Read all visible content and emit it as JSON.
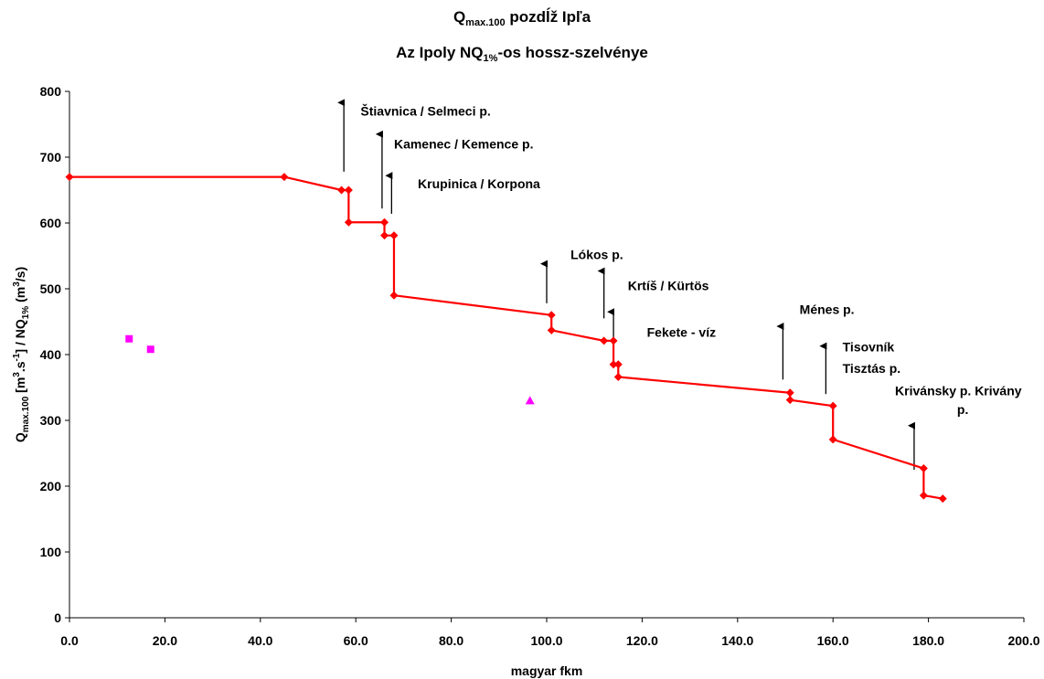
{
  "chart_data": {
    "type": "line",
    "title": "Qmax.100 pozdĺž Ipľa",
    "title_parts": {
      "line1_main": "Q",
      "line1_sub": "max.100",
      "line1_rest": " pozdĺž Ipľa",
      "line2_main": "Az Ipoly NQ",
      "line2_sub": "1%",
      "line2_rest": "-os hossz-szelvénye"
    },
    "xlabel": "magyar fkm",
    "ylabel": "Qmax.100 [m3.s-1] / NQ1% (m3/s)",
    "ylabel_parts": {
      "p1": "Q",
      "p1_sub": "max.100",
      "p2": " [m",
      "p2_sup": "3",
      "p3": ".s",
      "p3_sup": "-1",
      "p4": "] / NQ",
      "p4_sub": "1%",
      "p5": " (m",
      "p5_sup": "3",
      "p6": "/s)"
    },
    "xlim": [
      0,
      200
    ],
    "ylim": [
      0,
      800
    ],
    "x_ticks": [
      0,
      20,
      40,
      60,
      80,
      100,
      120,
      140,
      160,
      180,
      200
    ],
    "x_tick_labels": [
      "0.0",
      "20.0",
      "40.0",
      "60.0",
      "80.0",
      "100.0",
      "120.0",
      "140.0",
      "160.0",
      "180.0",
      "200.0"
    ],
    "y_ticks": [
      0,
      100,
      200,
      300,
      400,
      500,
      600,
      700,
      800
    ],
    "y_tick_labels": [
      "0",
      "100",
      "200",
      "300",
      "400",
      "500",
      "600",
      "700",
      "800"
    ],
    "grid": false,
    "legend": "none",
    "colors": {
      "main_line": "#ff0000",
      "squares": "#ff00ff",
      "triangle": "#ff00ff",
      "arrows": "#000000"
    },
    "series": [
      {
        "kind": "line-with-diamond-markers",
        "points": [
          [
            0,
            670
          ],
          [
            45,
            670
          ],
          [
            57,
            650
          ],
          [
            58.5,
            650
          ],
          [
            58.5,
            601
          ],
          [
            66,
            601
          ],
          [
            66,
            581
          ],
          [
            68,
            581
          ],
          [
            68,
            490
          ],
          [
            101,
            460
          ],
          [
            101,
            437
          ],
          [
            112,
            421
          ],
          [
            114,
            421
          ],
          [
            114,
            385
          ],
          [
            115,
            385
          ],
          [
            115,
            366
          ],
          [
            151,
            342
          ],
          [
            151,
            331
          ],
          [
            160,
            322
          ],
          [
            160,
            271
          ],
          [
            179,
            227
          ],
          [
            179,
            186
          ],
          [
            183,
            181
          ]
        ]
      },
      {
        "kind": "square-markers",
        "points": [
          [
            12.5,
            424
          ],
          [
            17,
            408
          ]
        ]
      },
      {
        "kind": "triangle-marker",
        "points": [
          [
            96.5,
            330
          ]
        ]
      }
    ],
    "annotations": [
      {
        "text": "Štiavnica / Selmeci p.",
        "arrow_x": 57.5,
        "arrow_from": 678,
        "arrow_to": 783,
        "text_x": 61,
        "text_y": 763
      },
      {
        "text": "Kamenec / Kemence p.",
        "arrow_x": 65.5,
        "arrow_from": 622,
        "arrow_to": 735,
        "text_x": 68,
        "text_y": 713
      },
      {
        "text": "Krupinica / Korpona",
        "arrow_x": 67.5,
        "arrow_from": 614,
        "arrow_to": 672,
        "text_x": 73,
        "text_y": 653
      },
      {
        "text": "Lókos p.",
        "arrow_x": 100,
        "arrow_from": 478,
        "arrow_to": 538,
        "text_x": 105,
        "text_y": 545
      },
      {
        "text": "Krtíš / Kürtös",
        "arrow_x": 112,
        "arrow_from": 455,
        "arrow_to": 527,
        "text_x": 117,
        "text_y": 498
      },
      {
        "text": "",
        "arrow_x": 114,
        "arrow_from": 420,
        "arrow_to": 465,
        "text_x": 0,
        "text_y": 0
      },
      {
        "text": "Fekete - víz",
        "arrow_x": null,
        "arrow_from": null,
        "arrow_to": null,
        "text_x": 121,
        "text_y": 427
      },
      {
        "text": "Ménes p.",
        "arrow_x": 149.5,
        "arrow_from": 362,
        "arrow_to": 443,
        "text_x": 153,
        "text_y": 462
      },
      {
        "text": "Tisovník",
        "arrow_x": 158.5,
        "arrow_from": 340,
        "arrow_to": 413,
        "text_x": 162,
        "text_y": 405
      },
      {
        "text": "Tisztás p.",
        "arrow_x": null,
        "arrow_from": null,
        "arrow_to": null,
        "text_x": 162,
        "text_y": 372
      },
      {
        "text": "Krivánsky p. Krivány",
        "arrow_x": 177,
        "arrow_from": 225,
        "arrow_to": 292,
        "text_x": 173,
        "text_y": 338
      },
      {
        "text": "p.",
        "arrow_x": null,
        "arrow_from": null,
        "arrow_to": null,
        "text_x": 186,
        "text_y": 310
      }
    ]
  }
}
